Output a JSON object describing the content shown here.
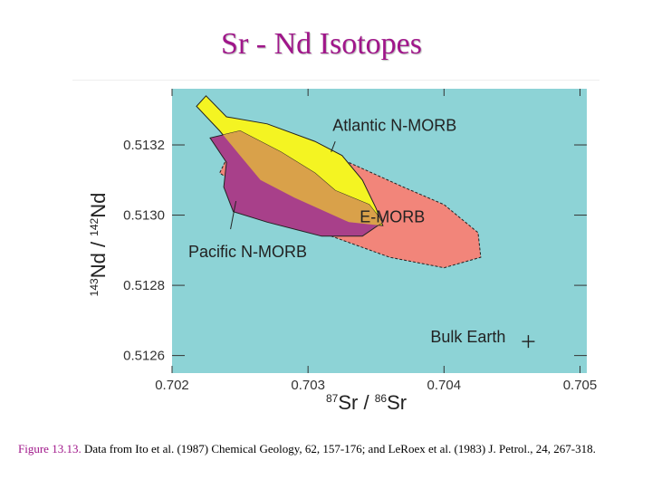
{
  "slide": {
    "title": "Sr - Nd Isotopes"
  },
  "caption": {
    "figure_label": "Figure 13.13.",
    "text": "Data from Ito et al. (1987) Chemical Geology, 62, 157-176; and LeRoex et al. (1983) J. Petrol., 24, 267-318."
  },
  "colors": {
    "background": "#8dd3d6",
    "atlantic": "#f4f422",
    "pacific": "#a8408a",
    "overlap": "#d9a14a",
    "emorb": "#f2857a",
    "title": "#a0168a"
  },
  "chart_data": {
    "type": "scatter",
    "xaxis": {
      "label_base": "Sr / ",
      "label_sup1": "87",
      "label_sup2": "86",
      "label_tail": "Sr",
      "range": [
        0.702,
        0.70505
      ],
      "ticks": [
        0.702,
        0.703,
        0.704,
        0.705
      ],
      "tick_labels": [
        "0.702",
        "0.703",
        "0.704",
        "0.705"
      ]
    },
    "yaxis": {
      "label_sup1": "143",
      "label_mid": "Nd / ",
      "label_sup2": "142",
      "label_tail": "Nd",
      "range": [
        0.51255,
        0.51336
      ],
      "ticks": [
        0.5126,
        0.5128,
        0.513,
        0.5132
      ],
      "tick_labels": [
        "0.5126",
        "0.5128",
        "0.5130",
        "0.5132"
      ]
    },
    "regions": [
      {
        "name": "E-MORB",
        "label": "E-MORB",
        "points": [
          [
            0.7024,
            0.51316
          ],
          [
            0.7029,
            0.5132
          ],
          [
            0.7033,
            0.51315
          ],
          [
            0.7037,
            0.51308
          ],
          [
            0.704,
            0.51303
          ],
          [
            0.70425,
            0.51295
          ],
          [
            0.70427,
            0.51288
          ],
          [
            0.704,
            0.51285
          ],
          [
            0.7036,
            0.51288
          ],
          [
            0.7031,
            0.51295
          ],
          [
            0.7027,
            0.51303
          ],
          [
            0.70235,
            0.51312
          ]
        ]
      },
      {
        "name": "Atlantic N-MORB",
        "label": "Atlantic N-MORB",
        "points": [
          [
            0.70225,
            0.51334
          ],
          [
            0.7024,
            0.51328
          ],
          [
            0.7027,
            0.51326
          ],
          [
            0.70305,
            0.51321
          ],
          [
            0.70325,
            0.51317
          ],
          [
            0.7034,
            0.5131
          ],
          [
            0.7035,
            0.51302
          ],
          [
            0.70355,
            0.51297
          ],
          [
            0.7033,
            0.51298
          ],
          [
            0.7029,
            0.51305
          ],
          [
            0.70265,
            0.5131
          ],
          [
            0.7025,
            0.51317
          ],
          [
            0.70235,
            0.51324
          ],
          [
            0.70218,
            0.51331
          ]
        ]
      },
      {
        "name": "Pacific N-MORB",
        "label": "Pacific N-MORB",
        "points": [
          [
            0.70228,
            0.51322
          ],
          [
            0.7025,
            0.51324
          ],
          [
            0.7028,
            0.51318
          ],
          [
            0.70305,
            0.51312
          ],
          [
            0.7032,
            0.51307
          ],
          [
            0.70345,
            0.51303
          ],
          [
            0.70355,
            0.51298
          ],
          [
            0.7034,
            0.51294
          ],
          [
            0.7031,
            0.51294
          ],
          [
            0.7027,
            0.51298
          ],
          [
            0.70245,
            0.51301
          ],
          [
            0.70238,
            0.51308
          ],
          [
            0.7024,
            0.51315
          ]
        ]
      }
    ],
    "points": [
      {
        "name": "Bulk Earth",
        "label": "Bulk Earth",
        "x": 0.70462,
        "y": 0.51264
      }
    ],
    "leaders": [
      {
        "target": "Atlantic N-MORB",
        "from": [
          0.70317,
          0.51318
        ],
        "to": [
          0.7032,
          0.51321
        ]
      },
      {
        "target": "Pacific N-MORB",
        "from": [
          0.70247,
          0.51304
        ],
        "to": [
          0.70243,
          0.51296
        ]
      }
    ],
    "grid": false
  }
}
